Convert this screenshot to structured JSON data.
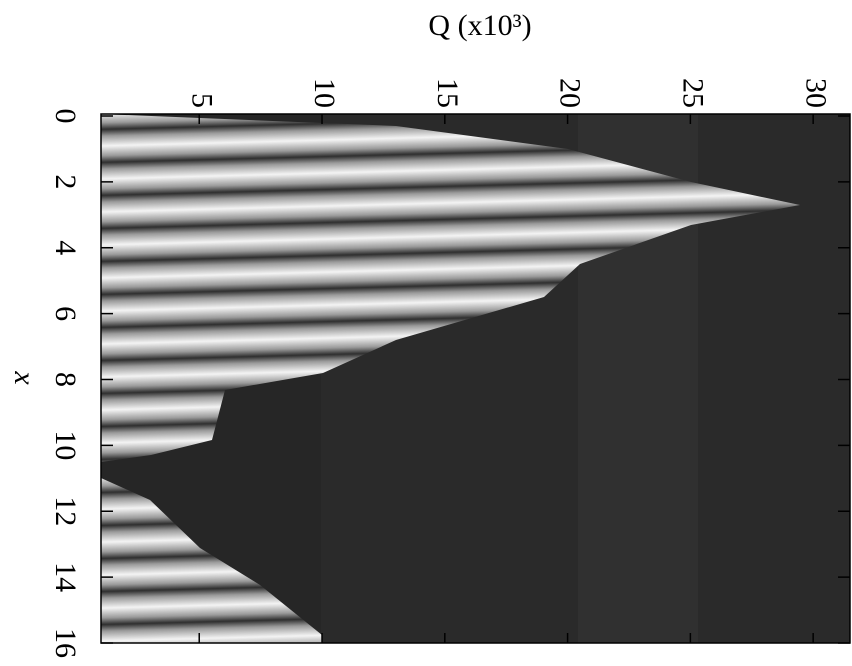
{
  "chart_data": {
    "type": "heatmap",
    "xlabel": "Q (x10³)",
    "ylabel": "x",
    "xlim": [
      1,
      31.5
    ],
    "xticks": [
      5,
      10,
      15,
      20,
      25,
      30
    ],
    "ylim": [
      0,
      16
    ],
    "yticks": [
      0,
      2,
      4,
      6,
      8,
      10,
      12,
      14,
      16
    ],
    "y_inverted": true
  }
}
